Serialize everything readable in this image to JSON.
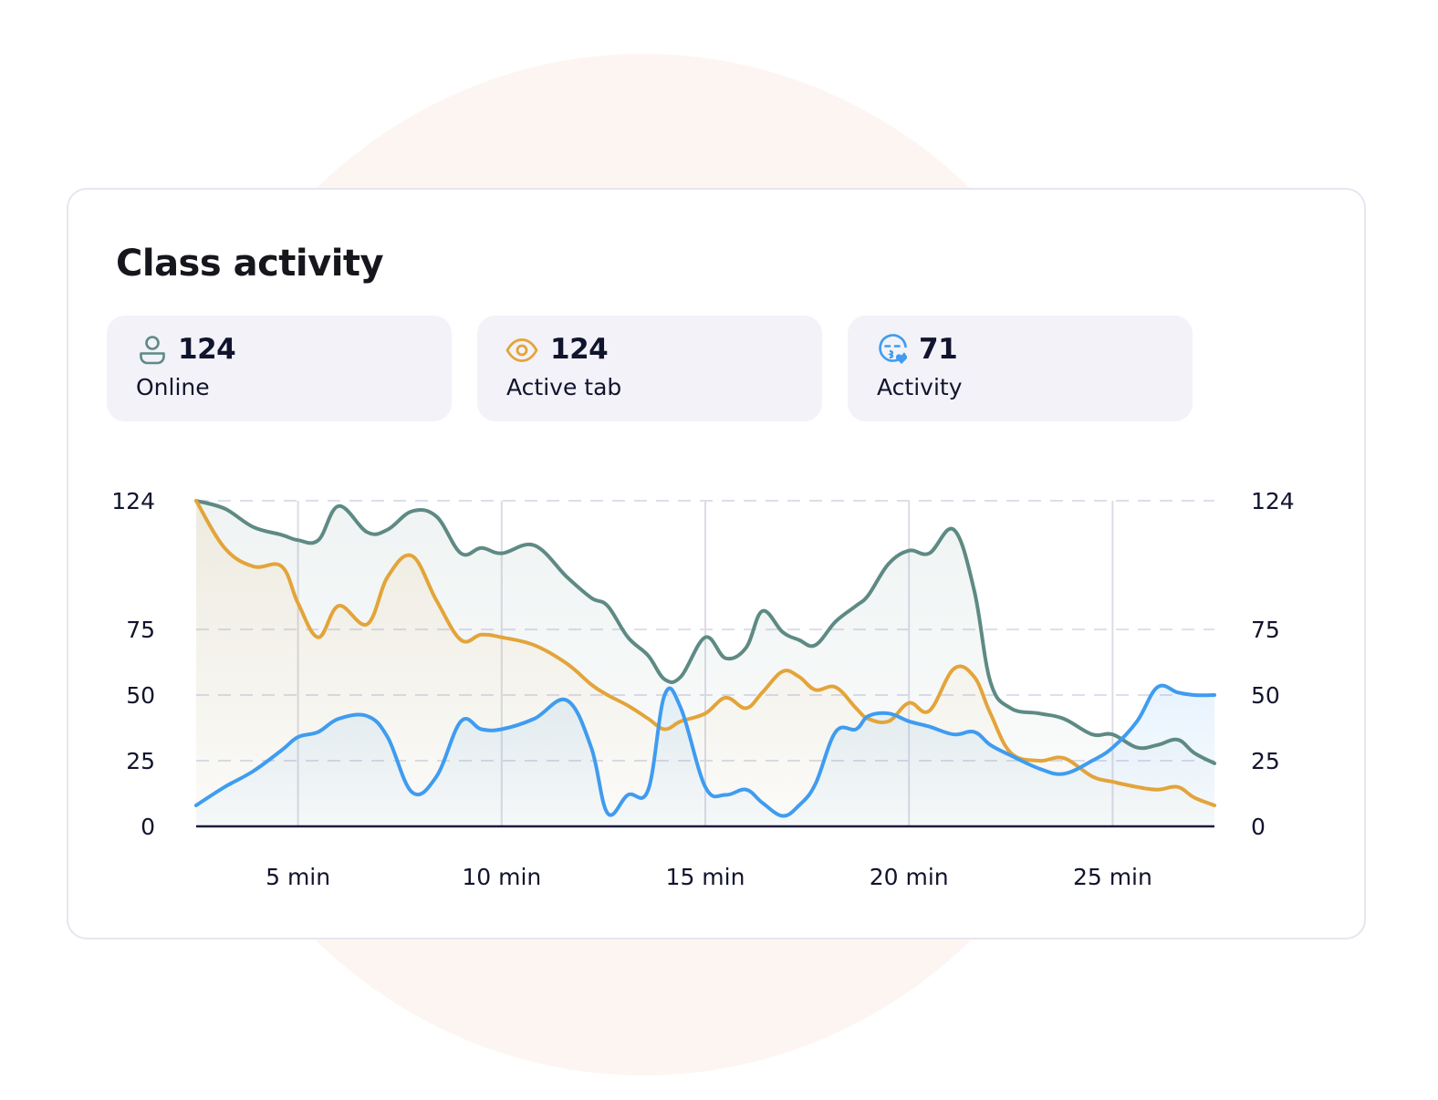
{
  "card": {
    "title": "Class activity"
  },
  "stats": [
    {
      "icon": "user-icon",
      "value": "124",
      "label": "Online",
      "color": "#5e8a84"
    },
    {
      "icon": "eye-icon",
      "value": "124",
      "label": "Active tab",
      "color": "#e3a43a"
    },
    {
      "icon": "kiss-face-icon",
      "value": "71",
      "label": "Activity",
      "color": "#3f9cf0"
    }
  ],
  "chart_data": {
    "type": "area",
    "title": "",
    "xlabel": "",
    "ylabel": "",
    "x_unit": "min",
    "xlim": [
      2.5,
      27.5
    ],
    "ylim": [
      0,
      124
    ],
    "y_ticks": [
      0,
      25,
      50,
      75,
      124
    ],
    "y_tick_labels": [
      "0",
      "25",
      "50",
      "75",
      "124"
    ],
    "x_ticks": [
      5,
      10,
      15,
      20,
      25
    ],
    "x_tick_labels": [
      "5 min",
      "10 min",
      "15 min",
      "20 min",
      "25 min"
    ],
    "y_axis_both_sides": true,
    "grid": {
      "horizontal": "dashed",
      "vertical": "solid"
    },
    "legend": "none",
    "x": [
      2.5,
      3.2,
      3.9,
      4.6,
      5.0,
      5.5,
      6.0,
      6.7,
      7.2,
      7.8,
      8.4,
      9.0,
      9.5,
      10.0,
      10.8,
      11.6,
      12.2,
      12.6,
      13.1,
      13.6,
      14.0,
      14.4,
      15.0,
      15.5,
      16.0,
      16.4,
      16.9,
      17.3,
      17.7,
      18.2,
      18.7,
      19.0,
      19.5,
      20.0,
      20.5,
      21.1,
      21.6,
      22.0,
      22.5,
      23.2,
      23.8,
      24.5,
      25.0,
      25.6,
      26.1,
      26.6,
      27.0,
      27.5
    ],
    "series": [
      {
        "name": "Online",
        "color": "#5e8a84",
        "values": [
          124,
          121,
          114,
          111,
          109,
          109,
          122,
          112,
          113,
          120,
          118,
          104,
          106,
          104,
          107,
          95,
          87,
          84,
          72,
          65,
          56,
          57,
          72,
          64,
          68,
          82,
          74,
          71,
          69,
          78,
          84,
          88,
          100,
          105,
          104,
          113,
          90,
          55,
          45,
          43,
          41,
          35,
          35,
          30,
          31,
          33,
          28,
          24
        ]
      },
      {
        "name": "Active tab",
        "color": "#e3a43a",
        "values": [
          124,
          106,
          99,
          99,
          85,
          72,
          84,
          77,
          95,
          103,
          86,
          71,
          73,
          72,
          69,
          62,
          54,
          50,
          46,
          41,
          37,
          40,
          43,
          49,
          45,
          51,
          59,
          57,
          52,
          53,
          45,
          41,
          40,
          47,
          44,
          60,
          57,
          43,
          28,
          25,
          26,
          19,
          17,
          15,
          14,
          15,
          11,
          8
        ]
      },
      {
        "name": "Activity",
        "color": "#3f9cf0",
        "values": [
          8,
          15,
          21,
          29,
          34,
          36,
          41,
          42,
          34,
          13,
          19,
          40,
          37,
          37,
          41,
          48,
          30,
          5,
          12,
          14,
          50,
          45,
          15,
          12,
          14,
          9,
          4,
          8,
          16,
          36,
          37,
          42,
          43,
          40,
          38,
          35,
          36,
          31,
          27,
          22,
          20,
          25,
          30,
          40,
          53,
          51,
          50,
          50
        ]
      }
    ]
  }
}
